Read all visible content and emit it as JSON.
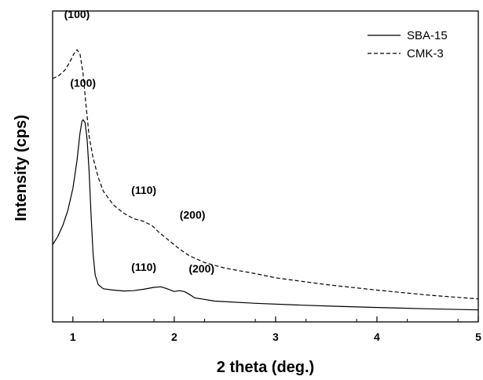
{
  "chart_data": {
    "type": "line",
    "xlabel": "2 theta (deg.)",
    "ylabel": "Intensity (cps)",
    "xlim": [
      0.8,
      5
    ],
    "x_ticks": [
      1,
      2,
      3,
      4,
      5
    ],
    "x_minor_step": 0.5,
    "y_ticks_shown": false,
    "grid": false,
    "legend_position": "top-right",
    "series": [
      {
        "name": "SBA-15",
        "line_style": "solid",
        "points": [
          [
            0.8,
            0.255
          ],
          [
            0.85,
            0.285
          ],
          [
            0.9,
            0.325
          ],
          [
            0.95,
            0.38
          ],
          [
            1.0,
            0.46
          ],
          [
            1.04,
            0.56
          ],
          [
            1.07,
            0.66
          ],
          [
            1.09,
            0.705
          ],
          [
            1.1,
            0.71
          ],
          [
            1.12,
            0.7
          ],
          [
            1.14,
            0.64
          ],
          [
            1.16,
            0.52
          ],
          [
            1.18,
            0.36
          ],
          [
            1.2,
            0.22
          ],
          [
            1.22,
            0.145
          ],
          [
            1.25,
            0.11
          ],
          [
            1.3,
            0.095
          ],
          [
            1.4,
            0.09
          ],
          [
            1.5,
            0.087
          ],
          [
            1.6,
            0.088
          ],
          [
            1.7,
            0.093
          ],
          [
            1.8,
            0.1
          ],
          [
            1.87,
            0.102
          ],
          [
            1.93,
            0.095
          ],
          [
            2.0,
            0.085
          ],
          [
            2.05,
            0.088
          ],
          [
            2.1,
            0.085
          ],
          [
            2.16,
            0.072
          ],
          [
            2.2,
            0.062
          ],
          [
            2.4,
            0.05
          ],
          [
            2.8,
            0.042
          ],
          [
            3.2,
            0.036
          ],
          [
            3.6,
            0.031
          ],
          [
            4.0,
            0.027
          ],
          [
            4.5,
            0.022
          ],
          [
            5.0,
            0.018
          ]
        ]
      },
      {
        "name": "CMK-3",
        "line_style": "dashed",
        "points": [
          [
            0.8,
            0.86
          ],
          [
            0.86,
            0.87
          ],
          [
            0.92,
            0.89
          ],
          [
            0.97,
            0.92
          ],
          [
            1.01,
            0.95
          ],
          [
            1.04,
            0.965
          ],
          [
            1.07,
            0.95
          ],
          [
            1.1,
            0.88
          ],
          [
            1.13,
            0.76
          ],
          [
            1.16,
            0.65
          ],
          [
            1.2,
            0.57
          ],
          [
            1.25,
            0.5
          ],
          [
            1.3,
            0.45
          ],
          [
            1.4,
            0.4
          ],
          [
            1.5,
            0.37
          ],
          [
            1.6,
            0.35
          ],
          [
            1.7,
            0.34
          ],
          [
            1.78,
            0.325
          ],
          [
            1.85,
            0.3
          ],
          [
            1.95,
            0.27
          ],
          [
            2.05,
            0.24
          ],
          [
            2.15,
            0.215
          ],
          [
            2.3,
            0.19
          ],
          [
            2.5,
            0.17
          ],
          [
            2.8,
            0.15
          ],
          [
            3.0,
            0.135
          ],
          [
            3.5,
            0.11
          ],
          [
            4.0,
            0.09
          ],
          [
            4.5,
            0.072
          ],
          [
            5.0,
            0.058
          ]
        ]
      }
    ],
    "annotations": [
      {
        "text": "(100)",
        "x": 1.04,
        "y": 1.08
      },
      {
        "text": "(100)",
        "x": 1.1,
        "y": 0.83
      },
      {
        "text": "(110)",
        "x": 1.7,
        "y": 0.44
      },
      {
        "text": "(200)",
        "x": 2.18,
        "y": 0.35
      },
      {
        "text": "(110)",
        "x": 1.7,
        "y": 0.16
      },
      {
        "text": "(200)",
        "x": 2.27,
        "y": 0.155
      }
    ]
  }
}
